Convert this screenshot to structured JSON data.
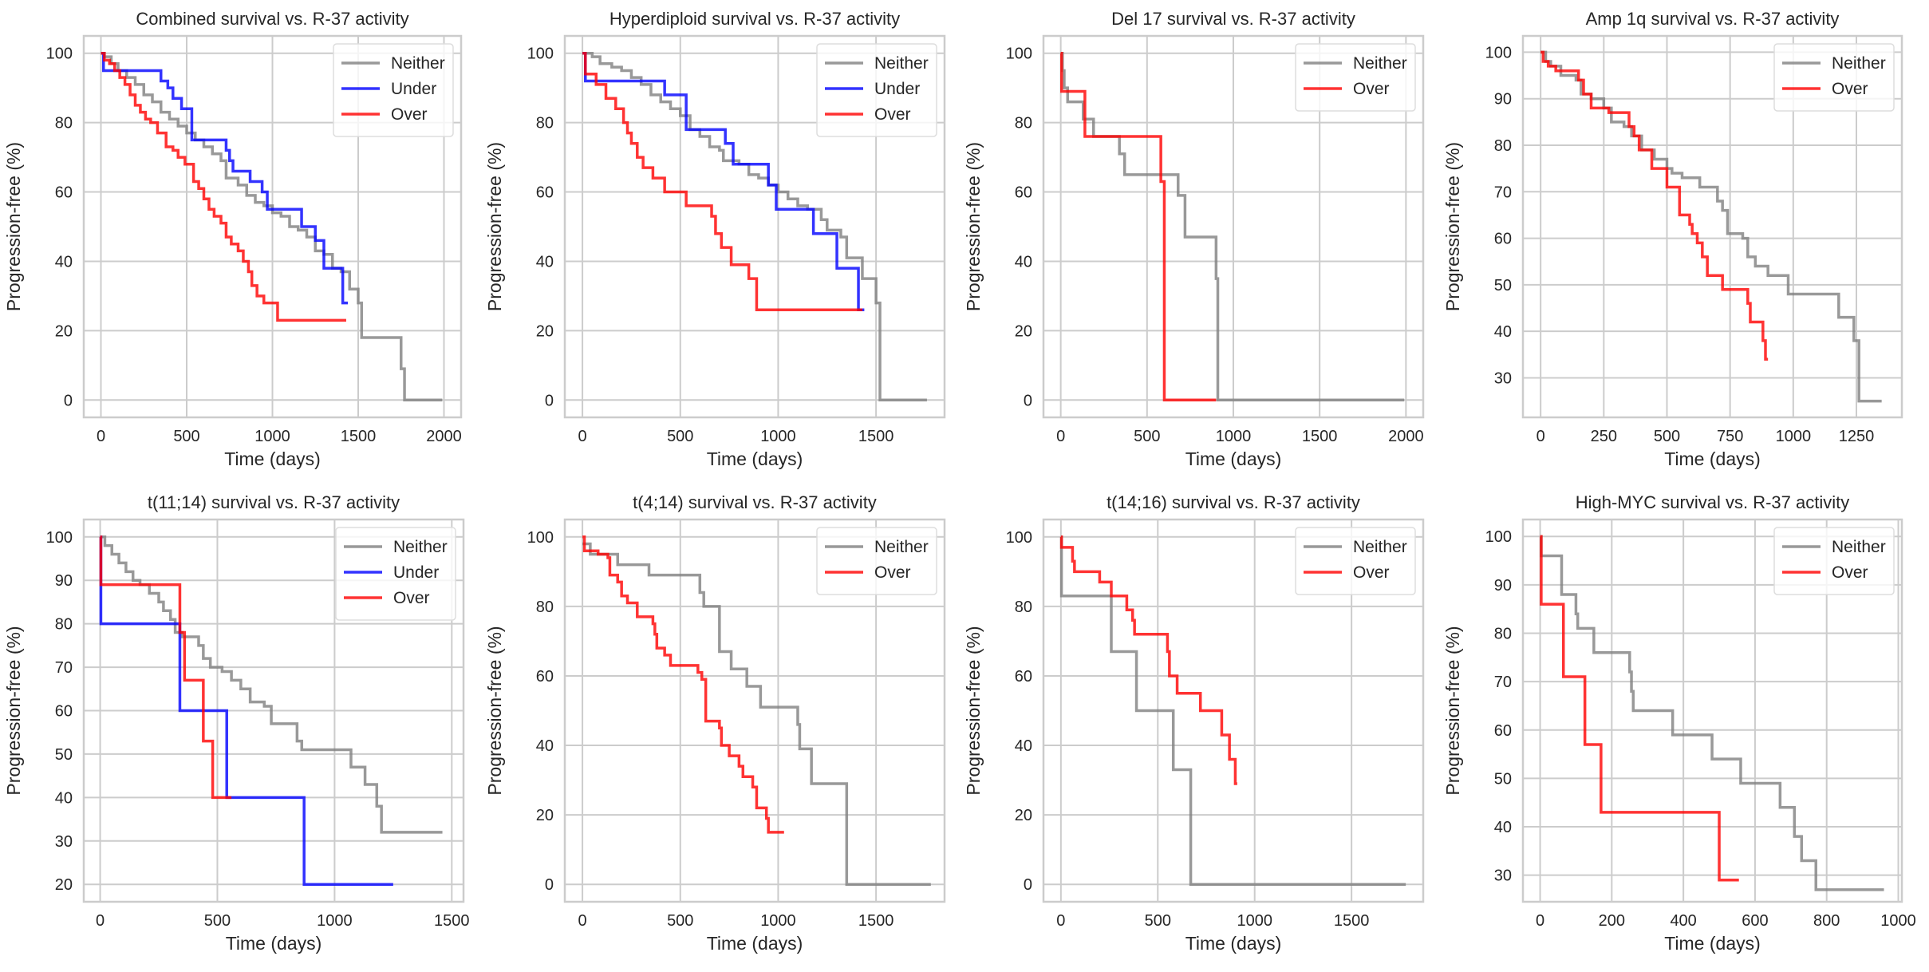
{
  "figure": {
    "colors": {
      "Neither": "#808080",
      "Under": "#0000ff",
      "Over": "#ff0000"
    }
  },
  "chart_data": [
    {
      "type": "line",
      "title": "Combined survival vs. R-37 activity",
      "xlabel": "Time (days)",
      "ylabel": "Progression-free (%)",
      "xlim": [
        -100,
        2100
      ],
      "ylim": [
        -5,
        105
      ],
      "xticks": [
        0,
        500,
        1000,
        1500,
        2000
      ],
      "yticks": [
        0,
        20,
        40,
        60,
        80,
        100
      ],
      "grid": true,
      "legend": "top-right",
      "series": [
        {
          "name": "Neither",
          "step": true,
          "x": [
            0,
            20,
            60,
            100,
            150,
            200,
            250,
            300,
            350,
            400,
            450,
            500,
            550,
            600,
            650,
            700,
            730,
            800,
            850,
            900,
            950,
            1000,
            1050,
            1100,
            1150,
            1200,
            1250,
            1300,
            1350,
            1400,
            1450,
            1500,
            1520,
            1750,
            1770,
            1990
          ],
          "y": [
            100,
            99,
            97,
            95,
            93,
            91,
            88,
            86,
            83,
            81,
            79,
            77,
            75,
            73,
            71,
            69,
            64,
            62,
            59,
            57,
            56,
            54,
            53,
            50,
            49,
            47,
            43,
            42,
            38,
            37,
            32,
            28,
            18,
            9,
            0,
            0
          ]
        },
        {
          "name": "Under",
          "step": true,
          "x": [
            0,
            15,
            350,
            390,
            420,
            470,
            530,
            730,
            750,
            770,
            870,
            940,
            970,
            1170,
            1250,
            1300,
            1410,
            1440
          ],
          "y": [
            100,
            95,
            92,
            90,
            87,
            84,
            75,
            72,
            69,
            66,
            63,
            60,
            55,
            50,
            46,
            38,
            28,
            28
          ],
          "end_x": 1440
        },
        {
          "name": "Over",
          "step": true,
          "x": [
            0,
            20,
            50,
            80,
            110,
            140,
            170,
            200,
            230,
            260,
            290,
            330,
            380,
            420,
            450,
            490,
            540,
            570,
            600,
            630,
            660,
            700,
            730,
            760,
            800,
            830,
            860,
            880,
            910,
            950,
            1030,
            1430
          ],
          "y": [
            100,
            98,
            97,
            95,
            93,
            91,
            88,
            85,
            83,
            81,
            80,
            77,
            73,
            72,
            70,
            68,
            63,
            61,
            58,
            55,
            53,
            51,
            47,
            45,
            43,
            40,
            37,
            33,
            30,
            28,
            23,
            23
          ]
        }
      ]
    },
    {
      "type": "line",
      "title": "Hyperdiploid survival vs. R-37 activity",
      "xlabel": "Time (days)",
      "ylabel": "Progression-free (%)",
      "xlim": [
        -90,
        1850
      ],
      "ylim": [
        -5,
        105
      ],
      "xticks": [
        0,
        500,
        1000,
        1500
      ],
      "yticks": [
        0,
        20,
        40,
        60,
        80,
        100
      ],
      "grid": true,
      "legend": "top-right",
      "series": [
        {
          "name": "Neither",
          "step": true,
          "x": [
            0,
            50,
            90,
            150,
            200,
            250,
            300,
            350,
            400,
            450,
            500,
            550,
            600,
            650,
            700,
            720,
            800,
            850,
            900,
            950,
            1000,
            1050,
            1100,
            1150,
            1220,
            1250,
            1320,
            1350,
            1430,
            1500,
            1520,
            1760
          ],
          "y": [
            100,
            99,
            97,
            96,
            95,
            93,
            91,
            88,
            86,
            84,
            82,
            78,
            76,
            73,
            72,
            69,
            68,
            65,
            64,
            62,
            60,
            58,
            56,
            55,
            52,
            49,
            47,
            41,
            35,
            28,
            0,
            0
          ]
        },
        {
          "name": "Under",
          "step": true,
          "x": [
            0,
            15,
            420,
            530,
            730,
            770,
            950,
            990,
            1180,
            1300,
            1410,
            1440
          ],
          "y": [
            100,
            92,
            88,
            78,
            74,
            68,
            62,
            55,
            48,
            38,
            26,
            26
          ]
        },
        {
          "name": "Over",
          "step": true,
          "x": [
            0,
            15,
            70,
            120,
            170,
            210,
            230,
            250,
            280,
            310,
            360,
            420,
            530,
            660,
            680,
            710,
            760,
            850,
            890,
            1430
          ],
          "y": [
            100,
            94,
            91,
            87,
            84,
            80,
            77,
            74,
            70,
            67,
            64,
            60,
            56,
            53,
            48,
            44,
            39,
            35,
            26,
            26
          ]
        }
      ]
    },
    {
      "type": "line",
      "title": "Del 17 survival vs. R-37 activity",
      "xlabel": "Time (days)",
      "ylabel": "Progression-free (%)",
      "xlim": [
        -100,
        2100
      ],
      "ylim": [
        -5,
        105
      ],
      "xticks": [
        0,
        500,
        1000,
        1500,
        2000
      ],
      "yticks": [
        0,
        20,
        40,
        60,
        80,
        100
      ],
      "grid": true,
      "legend": "top-right",
      "series": [
        {
          "name": "Neither",
          "step": true,
          "x": [
            0,
            10,
            20,
            40,
            130,
            190,
            340,
            370,
            680,
            720,
            900,
            910,
            1990
          ],
          "y": [
            100,
            95,
            90,
            86,
            81,
            76,
            71,
            65,
            59,
            47,
            35,
            0,
            0
          ]
        },
        {
          "name": "Over",
          "step": true,
          "x": [
            0,
            5,
            140,
            580,
            600,
            900
          ],
          "y": [
            100,
            89,
            76,
            63,
            0,
            0
          ]
        }
      ]
    },
    {
      "type": "line",
      "title": "Amp 1q survival vs. R-37 activity",
      "xlabel": "Time (days)",
      "ylabel": "Progression-free (%)",
      "xlim": [
        -70,
        1430
      ],
      "ylim": [
        21.5,
        103.5
      ],
      "xticks": [
        0,
        250,
        500,
        750,
        1000,
        1250
      ],
      "yticks": [
        30,
        40,
        50,
        60,
        70,
        80,
        90,
        100
      ],
      "grid": true,
      "legend": "top-right",
      "series": [
        {
          "name": "Neither",
          "step": true,
          "x": [
            0,
            20,
            40,
            80,
            140,
            160,
            200,
            250,
            280,
            330,
            360,
            400,
            450,
            500,
            520,
            560,
            630,
            700,
            720,
            740,
            800,
            820,
            850,
            900,
            980,
            1180,
            1240,
            1260,
            1350
          ],
          "y": [
            100,
            98,
            97,
            95,
            94,
            91,
            90,
            88,
            85,
            84,
            82,
            79,
            77,
            75,
            74,
            73,
            71,
            68,
            66,
            61,
            60,
            56,
            54,
            52,
            48,
            43,
            38,
            25,
            25
          ]
        },
        {
          "name": "Over",
          "step": true,
          "x": [
            0,
            10,
            30,
            60,
            150,
            170,
            200,
            270,
            350,
            370,
            390,
            440,
            500,
            550,
            590,
            600,
            620,
            640,
            660,
            720,
            820,
            830,
            880,
            890,
            900
          ],
          "y": [
            100,
            98,
            97,
            96,
            94,
            91,
            88,
            87,
            84,
            82,
            79,
            75,
            71,
            65,
            63,
            61,
            59,
            56,
            52,
            49,
            46,
            42,
            38,
            34,
            34
          ]
        }
      ]
    },
    {
      "type": "line",
      "title": "t(11;14) survival vs. R-37 activity",
      "xlabel": "Time (days)",
      "ylabel": "Progression-free (%)",
      "xlim": [
        -70,
        1550
      ],
      "ylim": [
        16,
        104
      ],
      "xticks": [
        0,
        500,
        1000,
        1500
      ],
      "yticks": [
        20,
        30,
        40,
        50,
        60,
        70,
        80,
        90,
        100
      ],
      "grid": true,
      "legend": "top-right",
      "series": [
        {
          "name": "Neither",
          "step": true,
          "x": [
            0,
            20,
            50,
            80,
            110,
            140,
            170,
            210,
            250,
            270,
            300,
            320,
            350,
            420,
            440,
            470,
            520,
            560,
            600,
            640,
            700,
            730,
            840,
            860,
            1070,
            1130,
            1180,
            1200,
            1460
          ],
          "y": [
            100,
            98,
            96,
            94,
            92,
            90,
            89,
            87,
            85,
            83,
            81,
            78,
            77,
            75,
            72,
            70,
            69,
            67,
            65,
            62,
            61,
            57,
            53,
            51,
            47,
            43,
            38,
            32,
            32
          ]
        },
        {
          "name": "Under",
          "step": true,
          "x": [
            0,
            3,
            340,
            540,
            870,
            1250
          ],
          "y": [
            100,
            80,
            60,
            40,
            20,
            20
          ]
        },
        {
          "name": "Over",
          "step": true,
          "x": [
            0,
            3,
            340,
            360,
            440,
            480,
            560
          ],
          "y": [
            100,
            89,
            78,
            67,
            53,
            40,
            40
          ]
        }
      ]
    },
    {
      "type": "line",
      "title": "t(4;14) survival vs. R-37 activity",
      "xlabel": "Time (days)",
      "ylabel": "Progression-free (%)",
      "xlim": [
        -90,
        1850
      ],
      "ylim": [
        -5,
        105
      ],
      "xticks": [
        0,
        500,
        1000,
        1500
      ],
      "yticks": [
        0,
        20,
        40,
        60,
        80,
        100
      ],
      "grid": true,
      "legend": "top-right",
      "series": [
        {
          "name": "Neither",
          "step": true,
          "x": [
            0,
            40,
            180,
            340,
            600,
            620,
            700,
            760,
            840,
            910,
            1100,
            1110,
            1170,
            1350,
            1780
          ],
          "y": [
            98,
            95,
            92,
            89,
            84,
            80,
            67,
            62,
            57,
            51,
            46,
            39,
            29,
            0,
            0
          ]
        },
        {
          "name": "Over",
          "step": true,
          "x": [
            0,
            10,
            80,
            130,
            140,
            180,
            200,
            230,
            280,
            360,
            370,
            380,
            420,
            450,
            590,
            610,
            630,
            700,
            710,
            750,
            800,
            820,
            870,
            890,
            940,
            950,
            1030
          ],
          "y": [
            100,
            96,
            95,
            94,
            89,
            87,
            83,
            81,
            77,
            75,
            72,
            68,
            66,
            63,
            61,
            59,
            47,
            45,
            40,
            37,
            34,
            31,
            28,
            22,
            19,
            15,
            15
          ]
        }
      ]
    },
    {
      "type": "line",
      "title": "t(14;16) survival vs. R-37 activity",
      "xlabel": "Time (days)",
      "ylabel": "Progression-free (%)",
      "xlim": [
        -90,
        1870
      ],
      "ylim": [
        -5,
        105
      ],
      "xticks": [
        0,
        500,
        1000,
        1500
      ],
      "yticks": [
        0,
        20,
        40,
        60,
        80,
        100
      ],
      "grid": true,
      "legend": "top-right",
      "series": [
        {
          "name": "Neither",
          "step": true,
          "x": [
            0,
            3,
            260,
            390,
            580,
            670,
            1780
          ],
          "y": [
            100,
            83,
            67,
            50,
            33,
            0,
            0
          ]
        },
        {
          "name": "Over",
          "step": true,
          "x": [
            0,
            3,
            60,
            70,
            200,
            260,
            340,
            370,
            380,
            550,
            560,
            600,
            720,
            830,
            870,
            900,
            910
          ],
          "y": [
            100,
            97,
            93,
            90,
            87,
            83,
            79,
            76,
            72,
            67,
            60,
            55,
            50,
            43,
            36,
            29,
            29
          ]
        }
      ]
    },
    {
      "type": "line",
      "title": "High-MYC survival vs. R-37 activity",
      "xlabel": "Time (days)",
      "ylabel": "Progression-free (%)",
      "xlim": [
        -48,
        1010
      ],
      "ylim": [
        24.5,
        103.5
      ],
      "xticks": [
        0,
        200,
        400,
        600,
        800,
        1000
      ],
      "yticks": [
        30,
        40,
        50,
        60,
        70,
        80,
        90,
        100
      ],
      "grid": true,
      "legend": "top-right",
      "series": [
        {
          "name": "Neither",
          "step": true,
          "x": [
            0,
            3,
            60,
            100,
            105,
            150,
            250,
            255,
            260,
            370,
            480,
            560,
            670,
            710,
            730,
            770,
            960
          ],
          "y": [
            100,
            96,
            88,
            84,
            81,
            76,
            72,
            68,
            64,
            59,
            54,
            49,
            44,
            38,
            33,
            27,
            27
          ]
        },
        {
          "name": "Over",
          "step": true,
          "x": [
            0,
            3,
            65,
            125,
            170,
            500,
            555
          ],
          "y": [
            100,
            86,
            71,
            57,
            43,
            29,
            29
          ]
        }
      ]
    }
  ]
}
